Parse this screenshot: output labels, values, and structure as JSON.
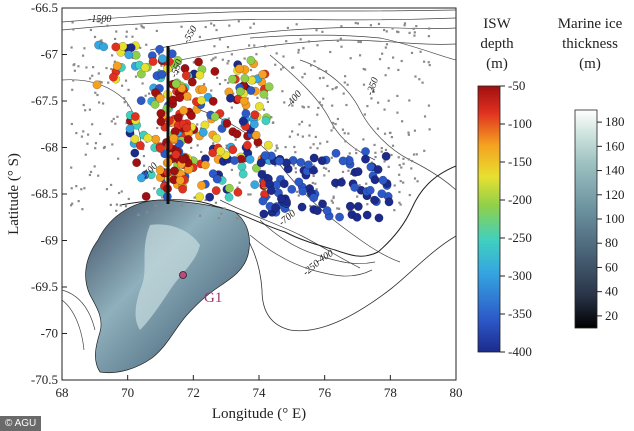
{
  "map": {
    "xlabel": "Longitude (° E)",
    "ylabel": "Latitude (° S)",
    "x_ticks": [
      "68",
      "70",
      "72",
      "74",
      "76",
      "78",
      "80"
    ],
    "y_ticks": [
      "-66.5",
      "-67",
      "-67.5",
      "-68",
      "-68.5",
      "-69",
      "-69.5",
      "-70",
      "-70.5"
    ],
    "x_range": [
      68,
      80
    ],
    "y_range": [
      -70.5,
      -66.5
    ],
    "contour_labels": [
      "-1500",
      "-550",
      "-550",
      "-400",
      "-250",
      "-700",
      "-700",
      "-400",
      "-250"
    ],
    "site_label": "G1"
  },
  "colorbar_isw": {
    "title_line1": "ISW",
    "title_line2": "depth",
    "title_line3": "(m)",
    "ticks": [
      "-50",
      "-100",
      "-150",
      "-200",
      "-250",
      "-300",
      "-350",
      "-400"
    ],
    "range": [
      -400,
      -50
    ]
  },
  "colorbar_ice": {
    "title_line1": "Marine ice",
    "title_line2": "thickness",
    "title_line3": "(m)",
    "ticks": [
      "180",
      "160",
      "140",
      "120",
      "100",
      "80",
      "60",
      "40",
      "20"
    ],
    "range": [
      10,
      190
    ]
  },
  "credit": "© AGU",
  "colors": {
    "isw_scale": [
      "#1c2a8c",
      "#2c58c8",
      "#35a6e0",
      "#40d0c0",
      "#8fd04a",
      "#e8e030",
      "#f5a020",
      "#e03020",
      "#a01010"
    ],
    "ice_scale": [
      "#000000",
      "#2a3448",
      "#4a6478",
      "#6d93a0",
      "#9cc0c0",
      "#d2e6e0",
      "#ffffff"
    ],
    "sample_points": "#8a8a8a",
    "site_marker": "#c04878"
  }
}
